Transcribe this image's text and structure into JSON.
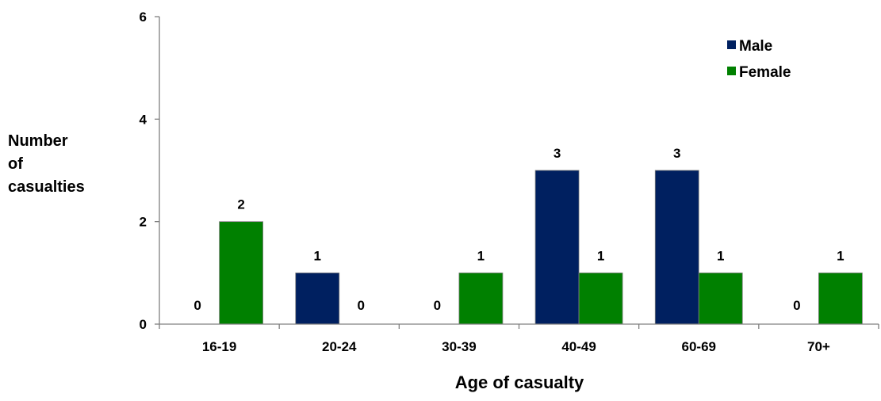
{
  "chart_data": {
    "type": "bar",
    "categories": [
      "16-19",
      "20-24",
      "30-39",
      "40-49",
      "60-69",
      "70+"
    ],
    "series": [
      {
        "name": "Male",
        "values": [
          0,
          1,
          0,
          3,
          3,
          0
        ],
        "color": "#002060"
      },
      {
        "name": "Female",
        "values": [
          2,
          0,
          1,
          1,
          1,
          1
        ],
        "color": "#008000"
      }
    ],
    "xlabel": "Age of casualty",
    "ylabel_lines": [
      "Number",
      "of",
      "casualties"
    ],
    "ylim": [
      0,
      6
    ],
    "yticks": [
      0,
      2,
      4,
      6
    ],
    "grid": false,
    "legend_position": "top-right",
    "data_labels": true
  }
}
